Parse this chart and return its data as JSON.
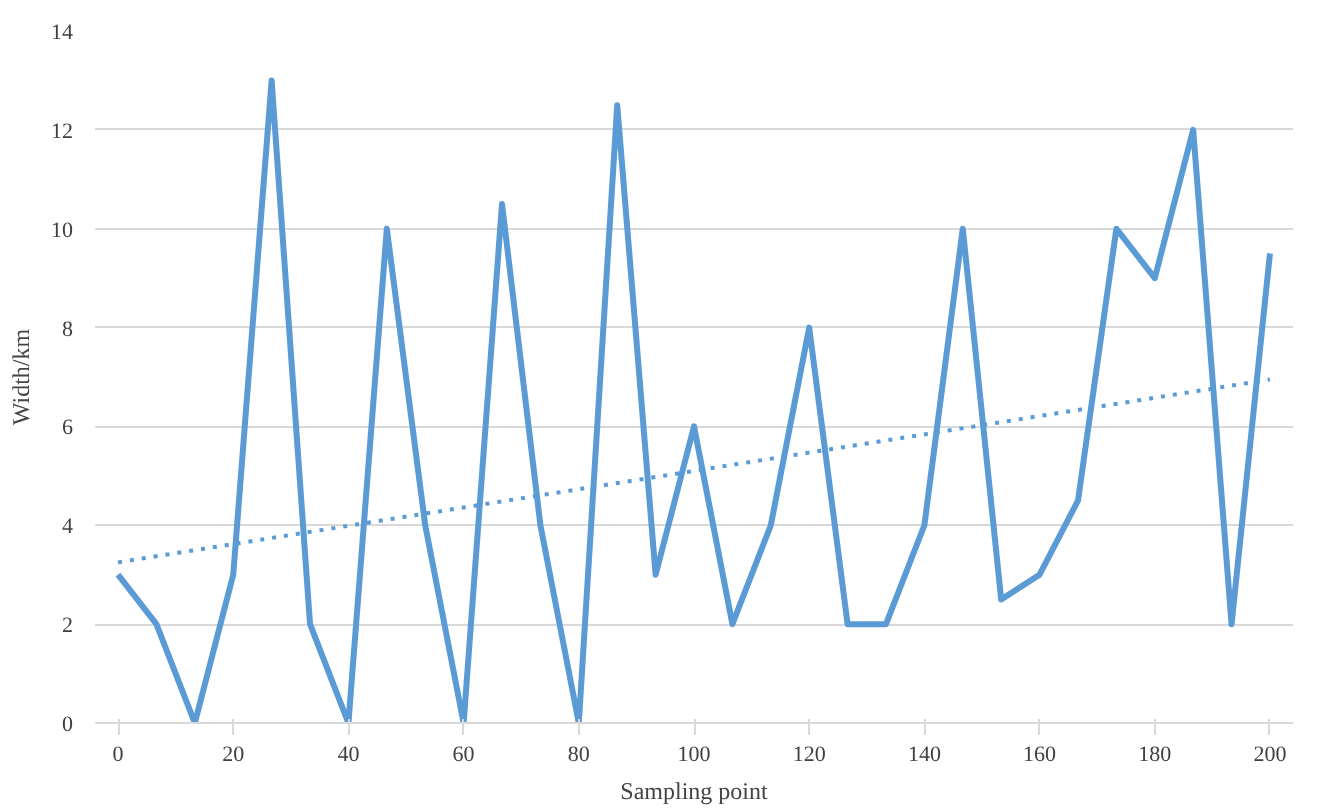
{
  "chart_data": {
    "type": "line",
    "xlabel": "Sampling point",
    "ylabel": "Width/km",
    "categories": [
      "0",
      null,
      null,
      "20",
      null,
      null,
      "40",
      null,
      null,
      "60",
      null,
      null,
      "80",
      null,
      null,
      "100",
      null,
      null,
      "120",
      null,
      null,
      "140",
      null,
      null,
      "160",
      null,
      null,
      "180",
      null,
      null,
      "200"
    ],
    "series": [
      {
        "color": "#5b9bd5",
        "values": [
          3,
          2,
          0,
          3,
          13,
          2,
          0,
          10,
          4,
          0,
          10.5,
          4,
          0,
          12.5,
          3,
          6,
          2,
          4,
          8,
          2,
          2,
          4,
          10,
          2.5,
          3,
          4.5,
          10,
          9,
          12,
          2,
          9.5
        ]
      },
      {
        "type": "line",
        "color": "#5b9bd5",
        "line_style": "dotted",
        "x": [
          "0",
          "200"
        ],
        "values": [
          3.25,
          6.95
        ]
      }
    ],
    "ylim": [
      0,
      14
    ],
    "yticks": [
      0,
      2,
      4,
      6,
      8,
      10,
      12,
      14
    ],
    "grid": "y",
    "marker": "none",
    "line_style": "solid"
  }
}
